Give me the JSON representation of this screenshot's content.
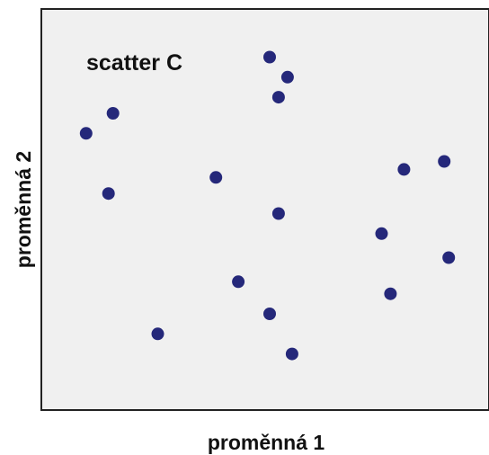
{
  "chart_data": {
    "type": "scatter",
    "title": "",
    "annotation": "scatter C",
    "xlabel": "proměnná 1",
    "ylabel": "proměnná 2",
    "xlim": [
      0,
      100
    ],
    "ylim": [
      0,
      100
    ],
    "grid": false,
    "legend": "none",
    "colors": {
      "marker": "#25287a",
      "plot_background": "#f0f0f0",
      "frame": "#222222",
      "text": "#111111"
    },
    "points": [
      {
        "x": 51,
        "y": 88
      },
      {
        "x": 55,
        "y": 83
      },
      {
        "x": 53,
        "y": 78
      },
      {
        "x": 16,
        "y": 74
      },
      {
        "x": 10,
        "y": 69
      },
      {
        "x": 90,
        "y": 62
      },
      {
        "x": 81,
        "y": 60
      },
      {
        "x": 39,
        "y": 58
      },
      {
        "x": 15,
        "y": 54
      },
      {
        "x": 53,
        "y": 49
      },
      {
        "x": 76,
        "y": 44
      },
      {
        "x": 91,
        "y": 38
      },
      {
        "x": 44,
        "y": 32
      },
      {
        "x": 78,
        "y": 29
      },
      {
        "x": 51,
        "y": 24
      },
      {
        "x": 26,
        "y": 19
      },
      {
        "x": 56,
        "y": 14
      }
    ]
  }
}
